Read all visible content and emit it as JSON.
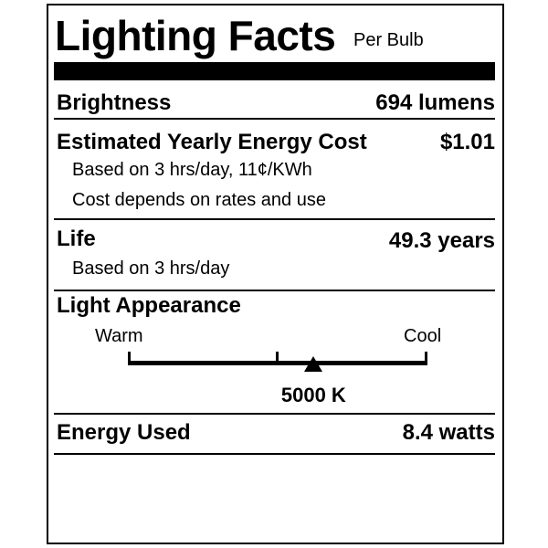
{
  "header": {
    "title": "Lighting Facts",
    "subtitle": "Per Bulb"
  },
  "brightness": {
    "label": "Brightness",
    "value": "694 lumens"
  },
  "energy_cost": {
    "label": "Estimated Yearly Energy Cost",
    "value": "$1.01",
    "note1": "Based on 3 hrs/day, 11¢/KWh",
    "note2": "Cost depends on rates and use"
  },
  "life": {
    "label": "Life",
    "value": "49.3 years",
    "note": "Based on 3 hrs/day"
  },
  "appearance": {
    "label": "Light Appearance",
    "warm_label": "Warm",
    "cool_label": "Cool",
    "value": "5000 K",
    "indicator_fraction": 0.62
  },
  "energy_used": {
    "label": "Energy Used",
    "value": "8.4 watts"
  }
}
